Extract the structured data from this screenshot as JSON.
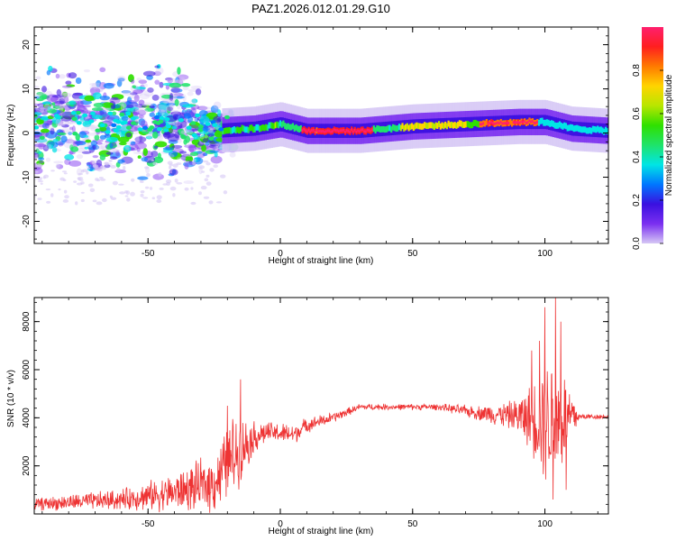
{
  "figure_title": "PAZ1.2026.012.01.29.G10",
  "chart_data": [
    {
      "type": "heatmap",
      "title": "PAZ1.2026.012.01.29.G10",
      "xlabel": "Height of straight line (km)",
      "ylabel": "Frequency (Hz)",
      "xlim": [
        -93,
        124
      ],
      "ylim": [
        -25,
        24
      ],
      "xticks": [
        -50,
        0,
        50,
        100
      ],
      "yticks": [
        20,
        10,
        0,
        -10,
        -20
      ],
      "colorbar": {
        "label": "Normalized spectral amplitude",
        "range": [
          0,
          1
        ],
        "ticks": [
          0.0,
          0.2,
          0.4,
          0.6,
          0.8
        ],
        "colormap": [
          "#d6c8f5",
          "#7a2ff0",
          "#3a10e0",
          "#0077ff",
          "#00e5e5",
          "#1fe36a",
          "#2fe000",
          "#b8e600",
          "#ffd400",
          "#ff7a00",
          "#ff1f1f",
          "#ff1f6e"
        ]
      },
      "ridge": [
        {
          "x": -90,
          "f": 3
        },
        {
          "x": -70,
          "f": 2.5
        },
        {
          "x": -50,
          "f": 3
        },
        {
          "x": -35,
          "f": 1.5
        },
        {
          "x": -25,
          "f": 0.5
        },
        {
          "x": -10,
          "f": 1
        },
        {
          "x": 0,
          "f": 2
        },
        {
          "x": 10,
          "f": 0.5
        },
        {
          "x": 30,
          "f": 0.5
        },
        {
          "x": 50,
          "f": 1.5
        },
        {
          "x": 70,
          "f": 2
        },
        {
          "x": 90,
          "f": 2.5
        },
        {
          "x": 100,
          "f": 2.5
        },
        {
          "x": 110,
          "f": 1
        },
        {
          "x": 124,
          "f": 0.5
        }
      ]
    },
    {
      "type": "line",
      "xlabel": "Height of straight line (km)",
      "ylabel": "SNR (10 * v/v)",
      "xlim": [
        -93,
        124
      ],
      "ylim": [
        0,
        9000
      ],
      "xticks": [
        -50,
        0,
        50,
        100
      ],
      "yticks": [
        2000,
        4000,
        6000,
        8000
      ],
      "color": "#ee3333",
      "series": [
        {
          "name": "SNR",
          "envelope": [
            {
              "x": -93,
              "mean": 400,
              "amp": 300
            },
            {
              "x": -60,
              "mean": 600,
              "amp": 500
            },
            {
              "x": -40,
              "mean": 900,
              "amp": 900
            },
            {
              "x": -25,
              "mean": 1300,
              "amp": 1400
            },
            {
              "x": -18,
              "mean": 2400,
              "amp": 2000
            },
            {
              "x": -10,
              "mean": 3200,
              "amp": 800
            },
            {
              "x": -5,
              "mean": 3400,
              "amp": 500
            },
            {
              "x": 5,
              "mean": 3300,
              "amp": 500
            },
            {
              "x": 10,
              "mean": 3700,
              "amp": 350
            },
            {
              "x": 20,
              "mean": 4000,
              "amp": 250
            },
            {
              "x": 30,
              "mean": 4450,
              "amp": 150
            },
            {
              "x": 60,
              "mean": 4450,
              "amp": 150
            },
            {
              "x": 75,
              "mean": 4200,
              "amp": 350
            },
            {
              "x": 88,
              "mean": 4100,
              "amp": 700
            },
            {
              "x": 95,
              "mean": 4000,
              "amp": 1600
            },
            {
              "x": 100,
              "mean": 3900,
              "amp": 3000
            },
            {
              "x": 105,
              "mean": 3900,
              "amp": 3200
            },
            {
              "x": 110,
              "mean": 4000,
              "amp": 1500
            },
            {
              "x": 113,
              "mean": 4050,
              "amp": 150
            },
            {
              "x": 124,
              "mean": 4050,
              "amp": 120
            }
          ],
          "peaks": [
            {
              "x": -15,
              "y": 5600
            },
            {
              "x": -20,
              "y": 4500
            },
            {
              "x": 100,
              "y": 8600
            },
            {
              "x": 104,
              "y": 9000
            },
            {
              "x": 103,
              "y": 600
            },
            {
              "x": 98,
              "y": 7200
            },
            {
              "x": 108,
              "y": 1000
            },
            {
              "x": 95,
              "y": 6800
            },
            {
              "x": 106,
              "y": 8000
            }
          ]
        }
      ]
    }
  ]
}
